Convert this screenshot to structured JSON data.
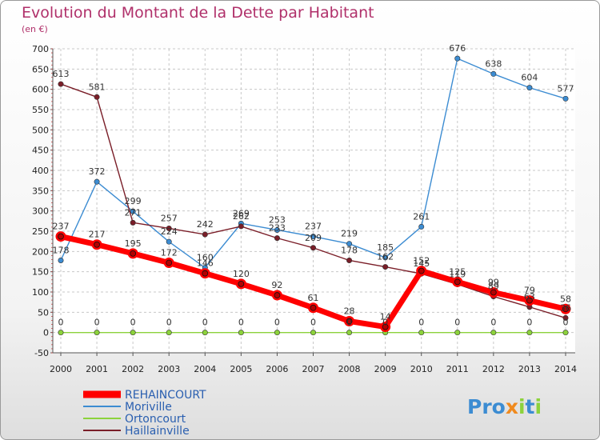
{
  "chart_data": {
    "type": "line",
    "title": "Evolution du Montant de la Dette par Habitant",
    "subtitle": "(en €)",
    "x": [
      "2000",
      "2001",
      "2002",
      "2003",
      "2004",
      "2005",
      "2006",
      "2007",
      "2008",
      "2009",
      "2010",
      "2011",
      "2012",
      "2013",
      "2014"
    ],
    "ylim": [
      -50,
      700
    ],
    "yticks": [
      -50,
      0,
      50,
      100,
      150,
      200,
      250,
      300,
      350,
      400,
      450,
      500,
      550,
      600,
      650,
      700
    ],
    "grid": true,
    "legend_position": "bottom-left",
    "series": [
      {
        "name": "REHAINCOURT",
        "color": "#ff0000",
        "values": [
          237,
          217,
          195,
          172,
          146,
          120,
          92,
          61,
          28,
          14,
          152,
          125,
          99,
          79,
          58
        ]
      },
      {
        "name": "Moriville",
        "color": "#3c8cd2",
        "values": [
          178,
          372,
          299,
          224,
          160,
          269,
          253,
          237,
          219,
          185,
          261,
          676,
          638,
          604,
          577
        ]
      },
      {
        "name": "Ortoncourt",
        "color": "#8cd23c",
        "values": [
          0,
          0,
          0,
          0,
          0,
          0,
          0,
          0,
          0,
          0,
          0,
          0,
          0,
          0,
          0
        ]
      },
      {
        "name": "Haillainville",
        "color": "#7a1e28",
        "values": [
          613,
          581,
          271,
          257,
          242,
          262,
          233,
          209,
          178,
          162,
          145,
          119,
          89,
          63,
          36
        ]
      }
    ]
  },
  "logo": {
    "p1": "Pro",
    "x": "x",
    "i1": "i",
    "t": "t",
    "i2": "i"
  }
}
